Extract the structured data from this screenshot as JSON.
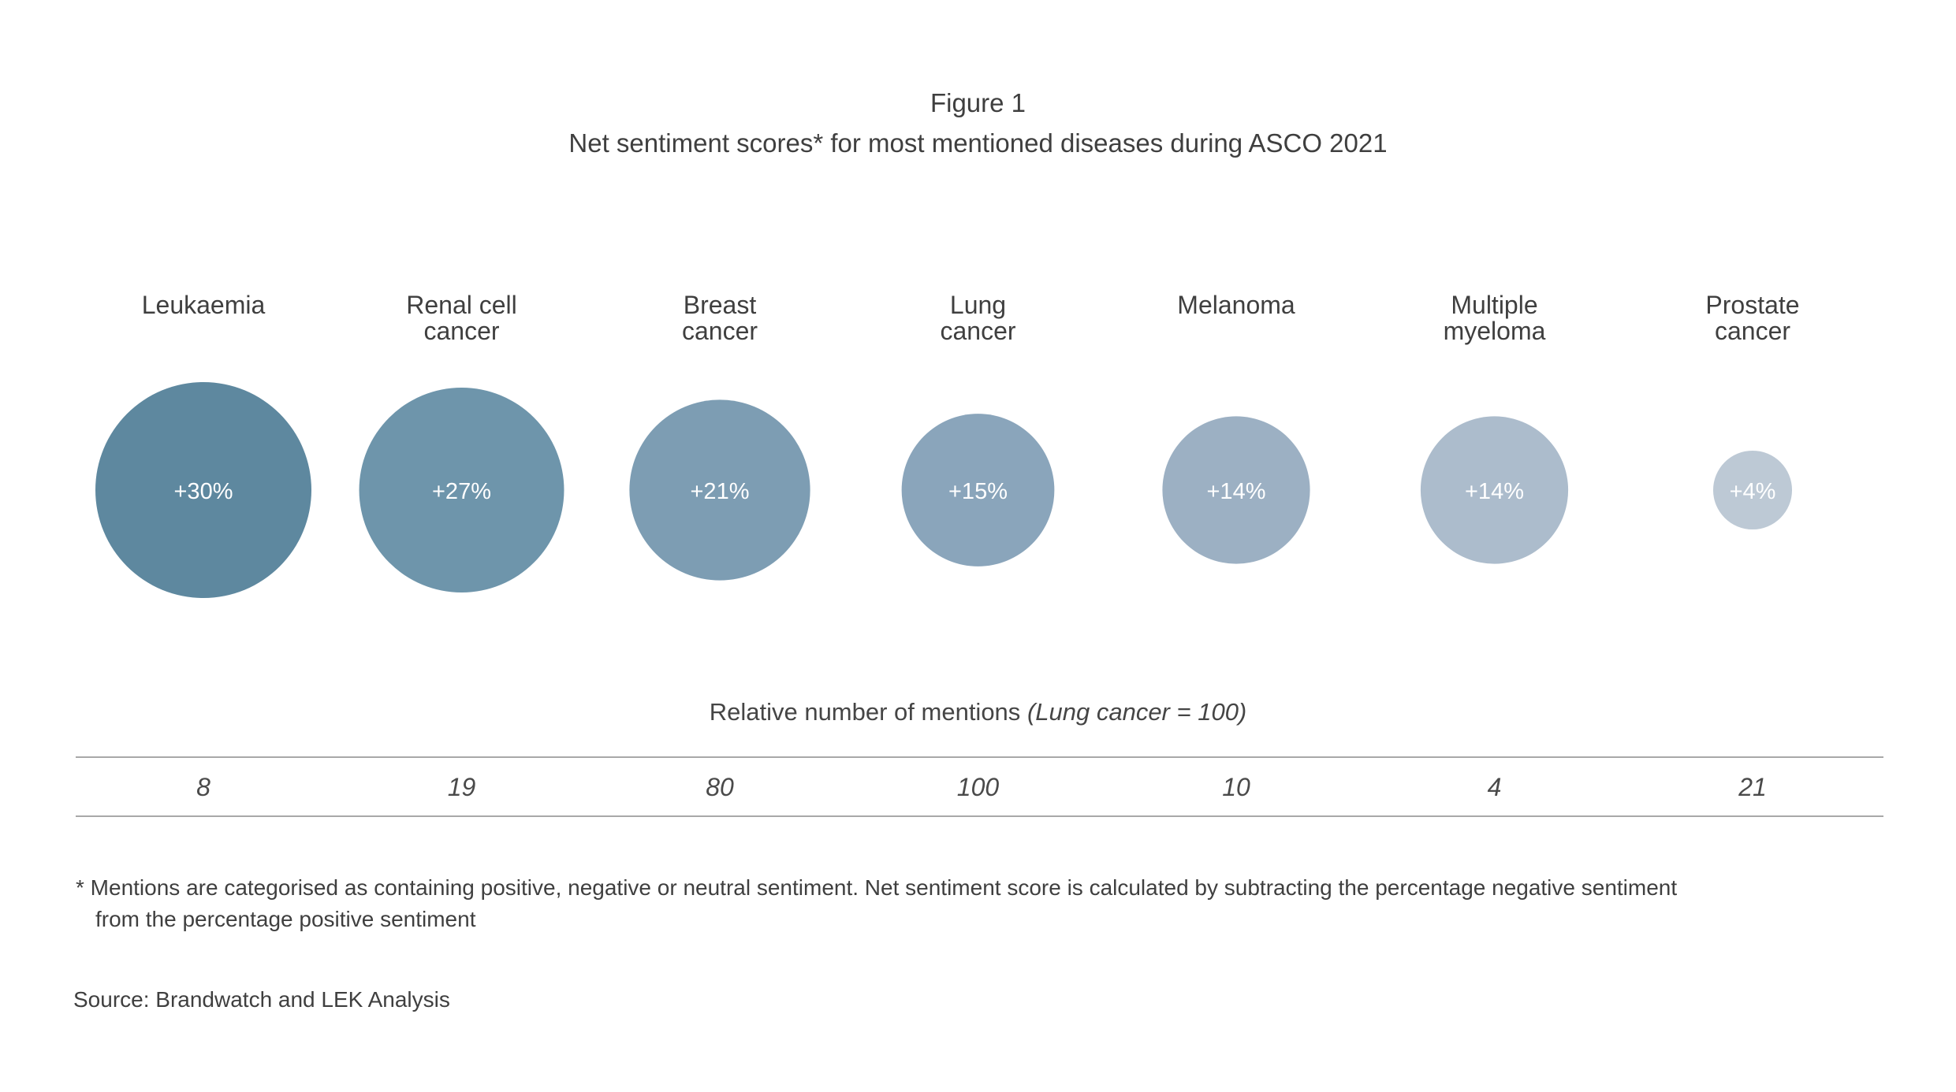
{
  "figure_label": "Figure 1",
  "subtitle": "Net sentiment scores* for most mentioned diseases during ASCO 2021",
  "mentions_label": "Relative number of mentions",
  "mentions_label_note": "(Lung cancer = 100)",
  "footnote_line1": "* Mentions are categorised as containing positive, negative or neutral sentiment. Net sentiment score is calculated by subtracting the percentage negative sentiment",
  "footnote_line2": "from the percentage positive sentiment",
  "source": "Source: Brandwatch and LEK Analysis",
  "chart_data": {
    "type": "bubble",
    "title": "Net sentiment scores* for most mentioned diseases during ASCO 2021",
    "categories": [
      [
        "Leukaemia"
      ],
      [
        "Renal cell",
        "cancer"
      ],
      [
        "Breast",
        "cancer"
      ],
      [
        "Lung",
        "cancer"
      ],
      [
        "Melanoma"
      ],
      [
        "Multiple",
        "myeloma"
      ],
      [
        "Prostate",
        "cancer"
      ]
    ],
    "net_sentiment_pct": [
      30,
      27,
      21,
      15,
      14,
      14,
      4
    ],
    "sentiment_labels": [
      "+30%",
      "+27%",
      "+21%",
      "+15%",
      "+14%",
      "+14%",
      "+4%"
    ],
    "relative_mentions": [
      8,
      19,
      80,
      100,
      10,
      4,
      21
    ],
    "colors": [
      "#5e889f",
      "#6e95ab",
      "#7d9db3",
      "#8aa5bb",
      "#9cb0c3",
      "#acbccc",
      "#bdc9d5"
    ]
  }
}
